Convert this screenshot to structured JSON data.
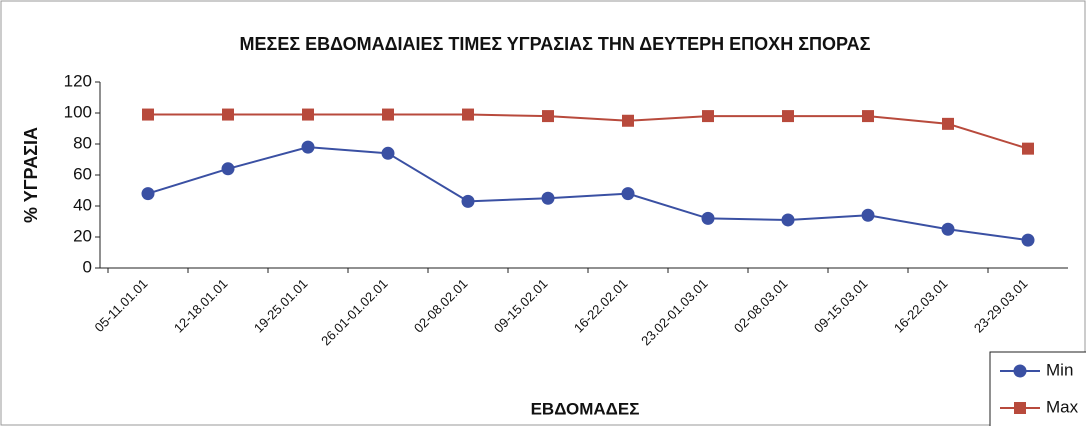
{
  "chart_data": {
    "type": "line",
    "title": "ΜΕΣΕΣ ΕΒΔΟΜΑΔΙΑΙΕΣ ΤΙΜΕΣ ΥΓΡΑΣΙΑΣ ΤΗΝ ΔΕΥΤΕΡΗ ΕΠΟΧΗ ΣΠΟΡΑΣ",
    "x_label": "ΕΒΔΟΜΑΔΕΣ",
    "y_label": "% ΥΓΡΑΣΙΑ",
    "categories": [
      "05-11.01.01",
      "12-18.01.01",
      "19-25.01.01",
      "26.01-01.02.01",
      "02-08.02.01",
      "09-15.02.01",
      "16-22.02.01",
      "23.02-01.03.01",
      "02-08.03.01",
      "09-15.03.01",
      "16-22.03.01",
      "23-29.03.01"
    ],
    "series": [
      {
        "name": "Min",
        "color": "#3a50a3",
        "marker": "circle",
        "values": [
          48,
          64,
          78,
          74,
          43,
          45,
          48,
          32,
          31,
          34,
          25,
          18
        ]
      },
      {
        "name": "Max",
        "color": "#b84a3c",
        "marker": "square",
        "values": [
          99,
          99,
          99,
          99,
          99,
          98,
          95,
          98,
          98,
          98,
          93,
          77
        ]
      }
    ],
    "ylim": [
      0,
      120
    ],
    "yticks": [
      0,
      20,
      40,
      60,
      80,
      100,
      120
    ],
    "grid": false,
    "legend": "bottom-right"
  }
}
